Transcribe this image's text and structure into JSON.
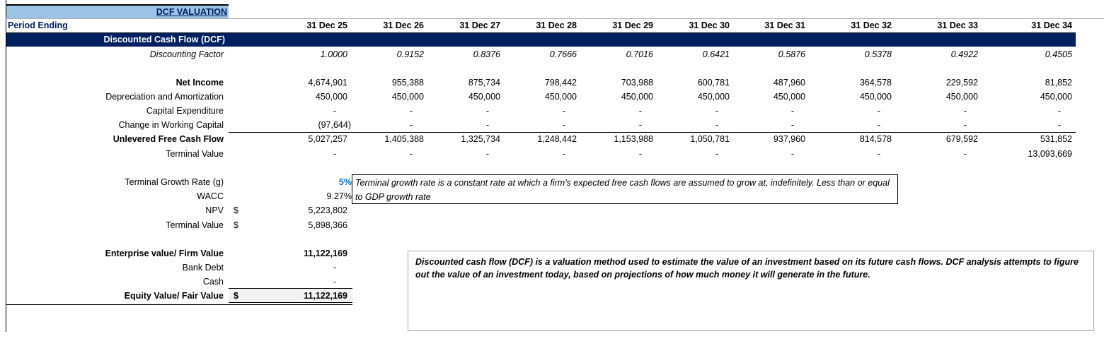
{
  "sheet": {
    "title": "DCF VALUATION",
    "period_label": "Period Ending",
    "periods": [
      "31 Dec 25",
      "31 Dec 26",
      "31 Dec 27",
      "31 Dec 28",
      "31 Dec 29",
      "31 Dec 30",
      "31 Dec 31",
      "31 Dec 32",
      "31 Dec 33",
      "31 Dec 34"
    ],
    "section_header": "Discounted Cash Flow (DCF)",
    "colors": {
      "header_fill": "#9dc3e6",
      "section_fill": "#002060",
      "input_blue": "#0070c0",
      "title_text": "#002060"
    },
    "rows": [
      {
        "label": "Discounting Factor",
        "style": "italic",
        "values": [
          "1.0000",
          "0.9152",
          "0.8376",
          "0.7666",
          "0.7016",
          "0.6421",
          "0.5876",
          "0.5378",
          "0.4922",
          "0.4505"
        ]
      },
      {
        "label": "Net Income",
        "style": "bold",
        "values": [
          "4,674,901",
          "955,388",
          "875,734",
          "798,442",
          "703,988",
          "600,781",
          "487,960",
          "364,578",
          "229,592",
          "81,852"
        ]
      },
      {
        "label": "Depreciation and Amortization",
        "style": "",
        "values": [
          "450,000",
          "450,000",
          "450,000",
          "450,000",
          "450,000",
          "450,000",
          "450,000",
          "450,000",
          "450,000",
          "450,000"
        ]
      },
      {
        "label": "Capital Expenditure",
        "style": "",
        "values": [
          "-",
          "-",
          "-",
          "-",
          "-",
          "-",
          "-",
          "-",
          "-",
          "-"
        ]
      },
      {
        "label": "Change in Working Capital",
        "style": "",
        "values": [
          "(97,644)",
          "-",
          "-",
          "-",
          "-",
          "-",
          "-",
          "-",
          "-",
          "-"
        ]
      },
      {
        "label": "Unlevered Free Cash Flow",
        "style": "bold",
        "values": [
          "5,027,257",
          "1,405,388",
          "1,325,734",
          "1,248,442",
          "1,153,988",
          "1,050,781",
          "937,960",
          "814,578",
          "679,592",
          "531,852"
        ]
      },
      {
        "label": "Terminal Value",
        "style": "",
        "values": [
          "-",
          "-",
          "-",
          "-",
          "-",
          "-",
          "-",
          "-",
          "-",
          "13,093,669"
        ]
      }
    ],
    "summary": [
      {
        "label": "Terminal Growth Rate (g)",
        "currency": "",
        "value": "5%",
        "style": "blue"
      },
      {
        "label": "WACC",
        "currency": "",
        "value": "9.27%",
        "style": ""
      },
      {
        "label": "NPV",
        "currency": "$",
        "value": "5,223,802",
        "style": ""
      },
      {
        "label": "Terminal Value",
        "currency": "$",
        "value": "5,898,366",
        "style": ""
      },
      {
        "label": "Enterprise value/ Firm Value",
        "currency": "",
        "value": "11,122,169",
        "style": "bold"
      },
      {
        "label": "Bank Debt",
        "currency": "",
        "value": "-",
        "style": ""
      },
      {
        "label": "Cash",
        "currency": "",
        "value": "-",
        "style": ""
      },
      {
        "label": "Equity Value/ Fair Value",
        "currency": "$",
        "value": "11,122,169",
        "style": "bold"
      }
    ],
    "note_growth": "Terminal growth rate is a constant rate at which a firm's expected free cash flows are assumed to grow at, indefinitely. Less than or equal to GDP growth rate",
    "note_dcf": "Discounted cash flow (DCF) is a valuation method used to estimate the value of an investment based on its future cash flows. DCF analysis attempts to figure out the value of an investment today, based on projections of how much money it will generate in the future."
  }
}
